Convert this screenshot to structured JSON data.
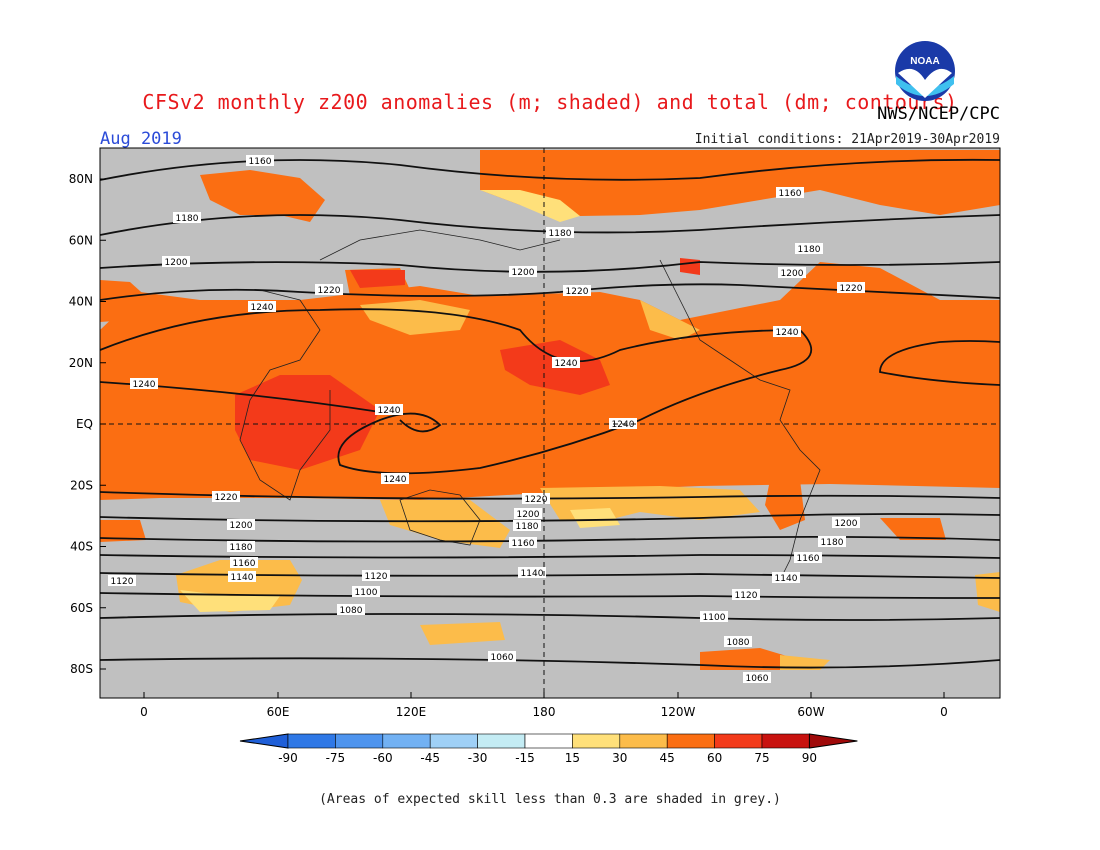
{
  "title": "CFSv2 monthly z200 anomalies (m; shaded) and total (dm; contours)",
  "agency": "NWS/NCEP/CPC",
  "month": "Aug 2019",
  "initial_conditions": "Initial conditions: 21Apr2019-30Apr2019",
  "footnote": "(Areas of expected skill less than 0.3 are shaded in grey.)",
  "logo_text": "NOAA",
  "colors": {
    "grey": "#c0c0c0",
    "c15": "#ffe07a",
    "c30": "#fcbc4a",
    "c45": "#fb6e12",
    "c60": "#f33a1a",
    "c75": "#c8120f"
  },
  "axes": {
    "lat_ticks": [
      "80N",
      "60N",
      "40N",
      "20N",
      "EQ",
      "20S",
      "40S",
      "60S",
      "80S"
    ],
    "lon_ticks": [
      "0",
      "60E",
      "120E",
      "180",
      "120W",
      "60W",
      "0"
    ]
  },
  "colorbar": {
    "labels": [
      "-90",
      "-75",
      "-60",
      "-45",
      "-30",
      "-15",
      "15",
      "30",
      "45",
      "60",
      "75",
      "90"
    ],
    "colors": [
      "#1f5fd8",
      "#2f78e6",
      "#4e94ee",
      "#72b1f3",
      "#9fd0f6",
      "#c4ecf4",
      "#ffffff",
      "#ffe07a",
      "#fcbc4a",
      "#fb6e12",
      "#f33a1a",
      "#c8120f",
      "#a00a0a"
    ]
  },
  "contour_labels": [
    "1160",
    "1180",
    "1200",
    "1220",
    "1240",
    "1240",
    "1240",
    "1240",
    "1240",
    "1240",
    "1220",
    "1220",
    "1200",
    "1200",
    "1180",
    "1180",
    "1160",
    "1160",
    "1140",
    "1140",
    "1120",
    "1120",
    "1100",
    "1100",
    "1080",
    "1080",
    "1060",
    "1060",
    "1180",
    "1200",
    "1220",
    "1240",
    "1220",
    "1200",
    "1180",
    "1160",
    "1160",
    "1140",
    "1120",
    "1200",
    "1180"
  ]
}
